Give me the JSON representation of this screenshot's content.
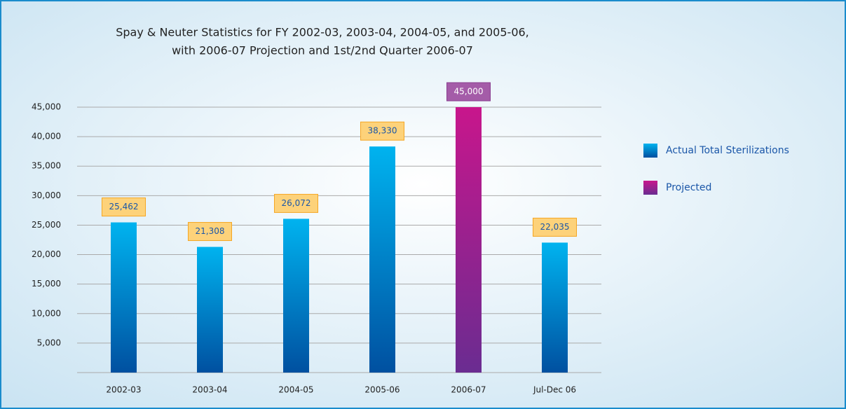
{
  "chart_data": {
    "type": "bar",
    "title": [
      "Spay & Neuter Statistics for FY 2002-03, 2003-04, 2004-05, and 2005-06,",
      "with 2006-07 Projection and 1st/2nd Quarter 2006-07"
    ],
    "categories": [
      "2002-03",
      "2003-04",
      "2004-05",
      "2005-06",
      "2006-07",
      "Jul-Dec 06"
    ],
    "series": [
      {
        "name": "Actual Total Sterilizations",
        "color": "#0a84d0",
        "values": [
          25462,
          21308,
          26072,
          38330,
          null,
          22035
        ],
        "value_labels": [
          "25,462",
          "21,308",
          "26,072",
          "38,330",
          null,
          "22,035"
        ]
      },
      {
        "name": "Projected",
        "color": "#a01a8e",
        "values": [
          null,
          null,
          null,
          null,
          45000,
          null
        ],
        "value_labels": [
          null,
          null,
          null,
          null,
          "45,000",
          null
        ]
      }
    ],
    "ylim": [
      0,
      45000
    ],
    "yticks": [
      {
        "value": 5000,
        "label": "5,000"
      },
      {
        "value": 10000,
        "label": "10,000"
      },
      {
        "value": 15000,
        "label": "15,000"
      },
      {
        "value": 20000,
        "label": "20,000"
      },
      {
        "value": 25000,
        "label": "25,000"
      },
      {
        "value": 30000,
        "label": "30,000"
      },
      {
        "value": 35000,
        "label": "35,000"
      },
      {
        "value": 40000,
        "label": "40,000"
      },
      {
        "value": 45000,
        "label": "45,000"
      }
    ],
    "grid": true,
    "legend": "right"
  }
}
